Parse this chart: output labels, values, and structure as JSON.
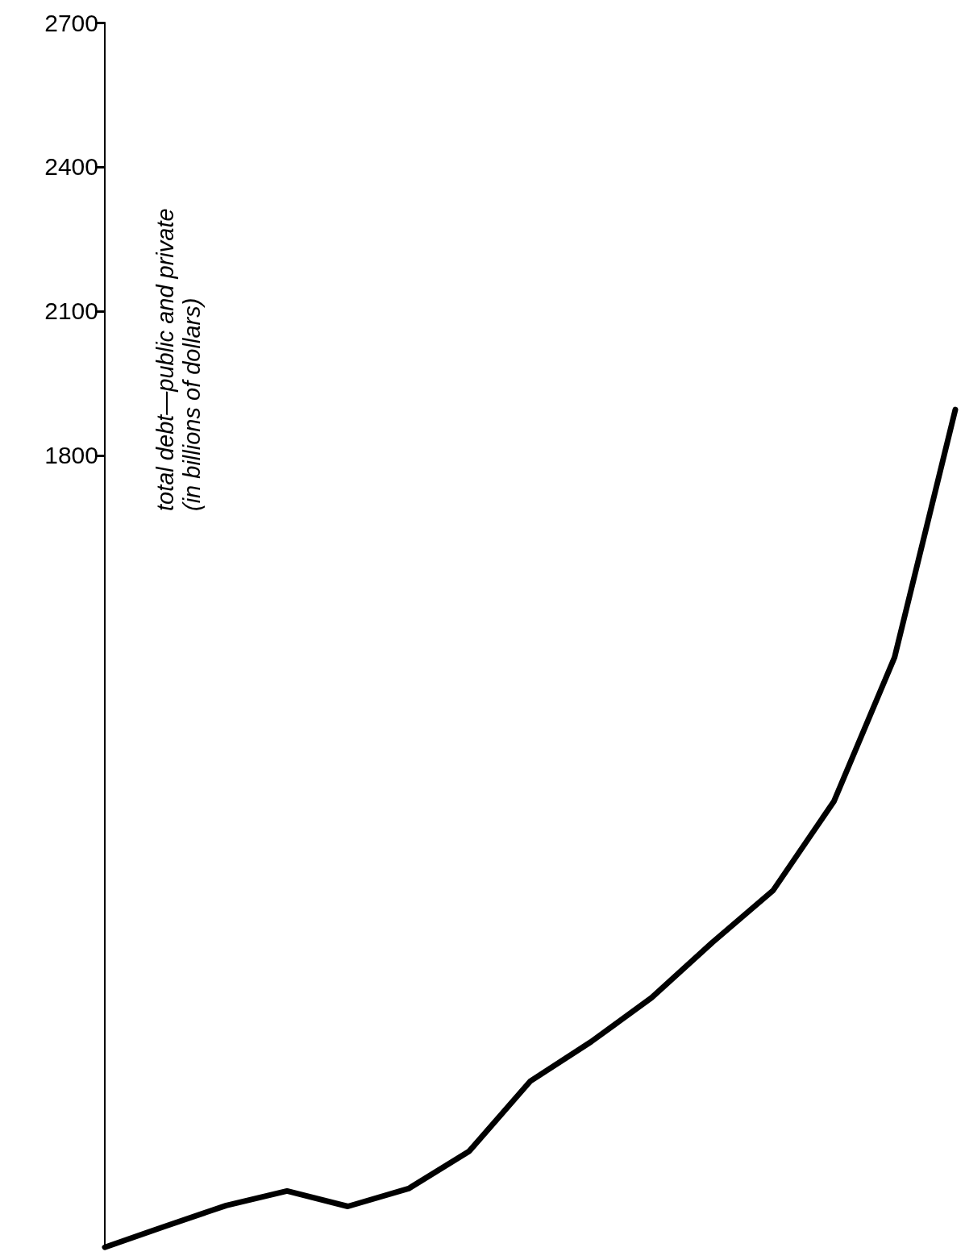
{
  "chart_data": {
    "type": "line",
    "ylabel": "total debt—public and private\n(in billions of dollars)",
    "categories": [
      null,
      null,
      null,
      null,
      null,
      null,
      null,
      null,
      null,
      null,
      null,
      null,
      null,
      null,
      null
    ],
    "values": [
      153,
      197,
      240,
      270,
      238,
      275,
      353,
      498,
      580,
      672,
      787,
      895,
      1080,
      1380,
      1895
    ],
    "color": "#000000",
    "ylim": [
      150,
      2700
    ],
    "yticks": [
      1800,
      2100,
      2400,
      2700
    ],
    "tick_labels": "y",
    "marker": "none",
    "line_style": "solid"
  }
}
